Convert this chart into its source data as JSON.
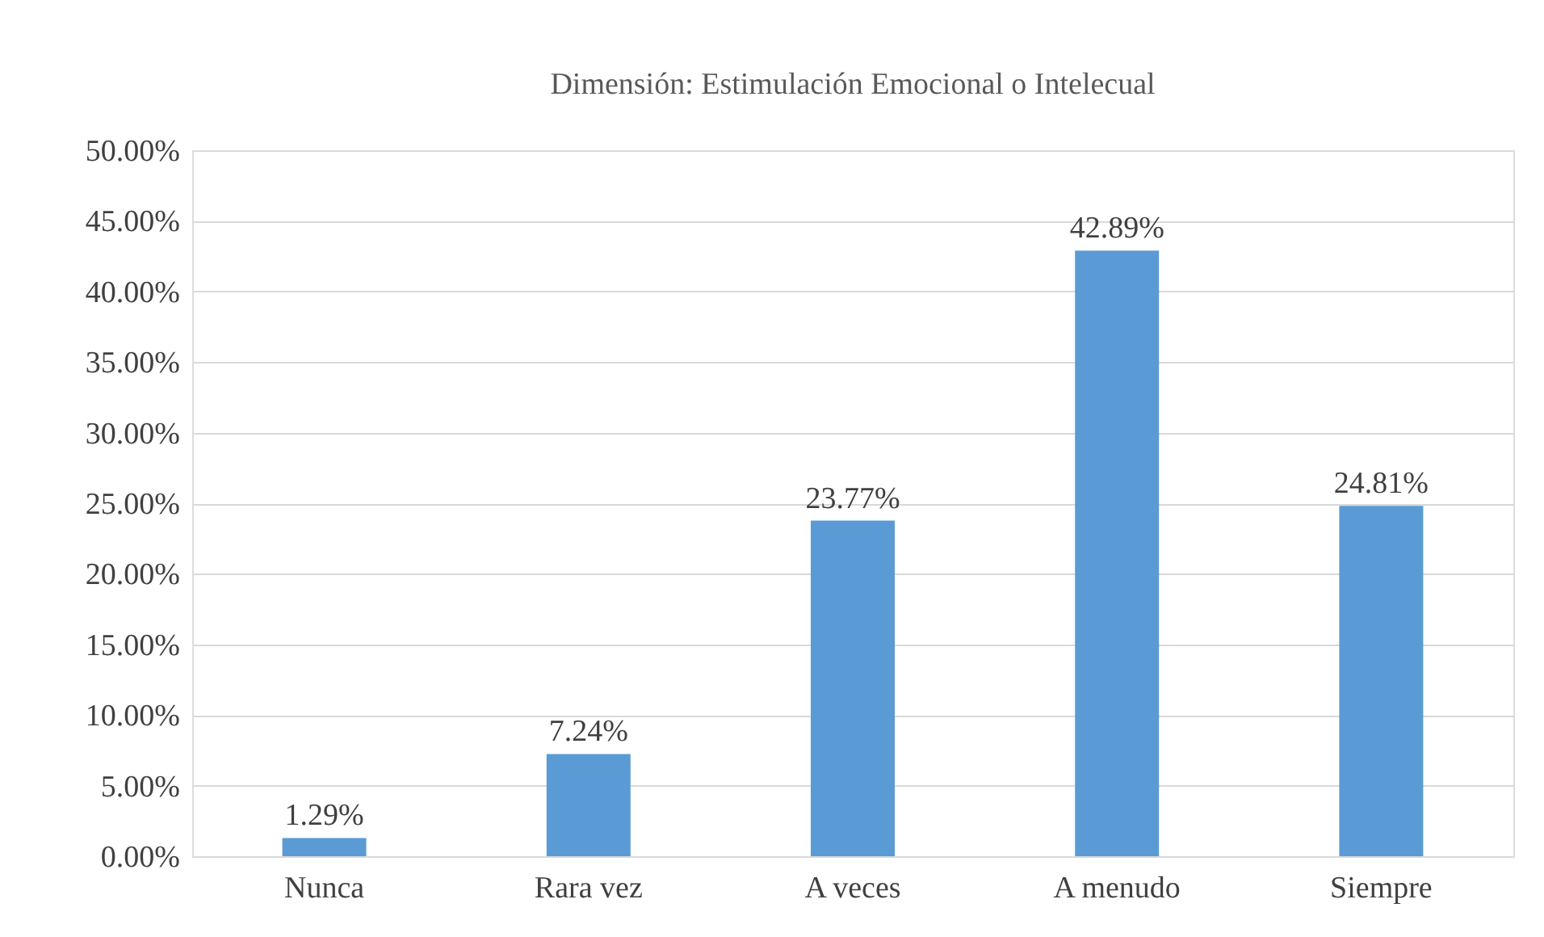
{
  "chart_data": {
    "type": "bar",
    "title": "Dimensión: Estimulación Emocional o Intelecual",
    "categories": [
      "Nunca",
      "Rara vez",
      "A veces",
      "A menudo",
      "Siempre"
    ],
    "values": [
      1.29,
      7.24,
      23.77,
      42.89,
      24.81
    ],
    "color": "#5b9bd5",
    "value_labels": [
      "1.29%",
      "7.24%",
      "23.77%",
      "42.89%",
      "24.81%"
    ],
    "ylim": [
      0,
      50
    ],
    "yticks": [
      {
        "value": 0,
        "label": "0.00%"
      },
      {
        "value": 5,
        "label": "5.00%"
      },
      {
        "value": 10,
        "label": "10.00%"
      },
      {
        "value": 15,
        "label": "15.00%"
      },
      {
        "value": 20,
        "label": "20.00%"
      },
      {
        "value": 25,
        "label": "25.00%"
      },
      {
        "value": 30,
        "label": "30.00%"
      },
      {
        "value": 35,
        "label": "35.00%"
      },
      {
        "value": 40,
        "label": "40.00%"
      },
      {
        "value": 45,
        "label": "45.00%"
      },
      {
        "value": 50,
        "label": "50.00%"
      }
    ],
    "grid": "y"
  }
}
